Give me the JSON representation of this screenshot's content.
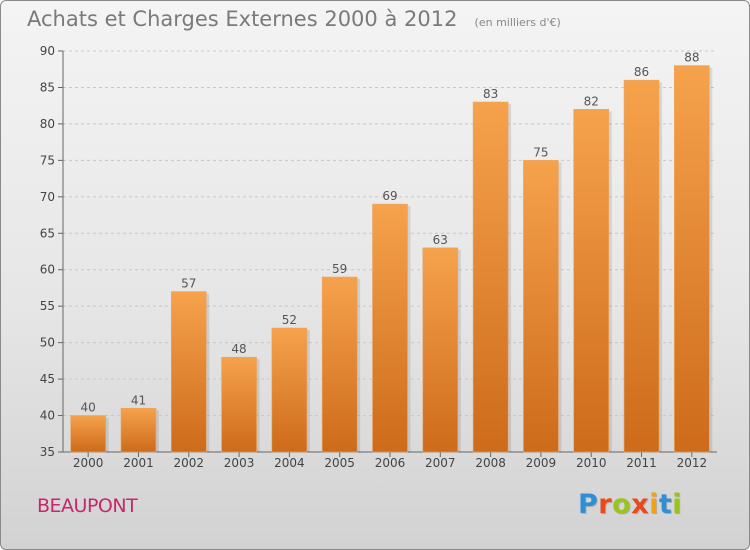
{
  "header": {
    "title": "Achats et Charges Externes 2000 à 2012",
    "unit": "(en milliers d'€)"
  },
  "footer": {
    "place": "BEAUPONT",
    "logo": "Proxiti"
  },
  "colors": {
    "bar_top": "#f6a24c",
    "bar_bottom": "#cd6b1a",
    "grid": "#c8c8c8",
    "place": "#c8266d",
    "logo_letters": [
      "#2f8fd6",
      "#e8491d",
      "#9ac31c",
      "#e8491d",
      "#f2a20f",
      "#2f8fd6",
      "#9ac31c"
    ]
  },
  "chart_data": {
    "type": "bar",
    "title": "Achats et Charges Externes 2000 à 2012",
    "subtitle": "(en milliers d'€)",
    "categories": [
      "2000",
      "2001",
      "2002",
      "2003",
      "2004",
      "2005",
      "2006",
      "2007",
      "2008",
      "2009",
      "2010",
      "2011",
      "2012"
    ],
    "values": [
      40,
      41,
      57,
      48,
      52,
      59,
      69,
      63,
      83,
      75,
      82,
      86,
      88
    ],
    "ylim": [
      35,
      90
    ],
    "yticks": [
      35,
      40,
      45,
      50,
      55,
      60,
      65,
      70,
      75,
      80,
      85,
      90
    ],
    "grid": true,
    "data_labels": true
  }
}
